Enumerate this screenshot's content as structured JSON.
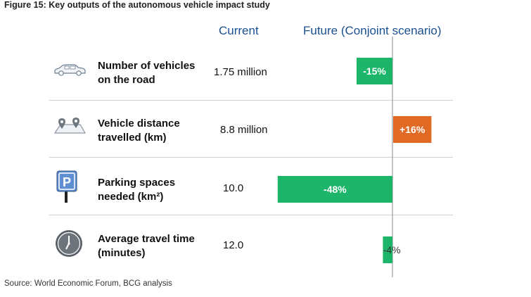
{
  "title": "Figure 15: Key outputs of the autonomous vehicle impact study",
  "columns": {
    "current": "Current",
    "future": "Future (Conjoint scenario)"
  },
  "rows": [
    {
      "label_line1": "Number of vehicles",
      "label_line2": "on the road",
      "current": "1.75 million",
      "icon": "car-icon"
    },
    {
      "label_line1": "Vehicle distance",
      "label_line2": "travelled (km)",
      "current": "8.8 million",
      "icon": "map-pins-icon"
    },
    {
      "label_line1": "Parking spaces",
      "label_line2": "needed (km²)",
      "current": "10.0",
      "icon": "parking-sign-icon"
    },
    {
      "label_line1": "Average travel time",
      "label_line2": "(minutes)",
      "current": "12.0",
      "icon": "clock-icon"
    }
  ],
  "source": "Source: World Economic Forum, BCG analysis",
  "colors": {
    "negative": "#1db56a",
    "positive": "#e06a24",
    "axis": "#9a9a9a"
  },
  "chart_data": {
    "type": "bar",
    "categories": [
      "Number of vehicles on the road",
      "Vehicle distance travelled (km)",
      "Parking spaces needed (km²)",
      "Average travel time (minutes)"
    ],
    "values": [
      -15,
      16,
      -48,
      -4
    ],
    "data_labels": [
      "-15%",
      "+16%",
      "-48%",
      "-4%"
    ],
    "title": "Future (Conjoint scenario)",
    "xlabel": "",
    "ylabel": "",
    "unit": "%"
  }
}
